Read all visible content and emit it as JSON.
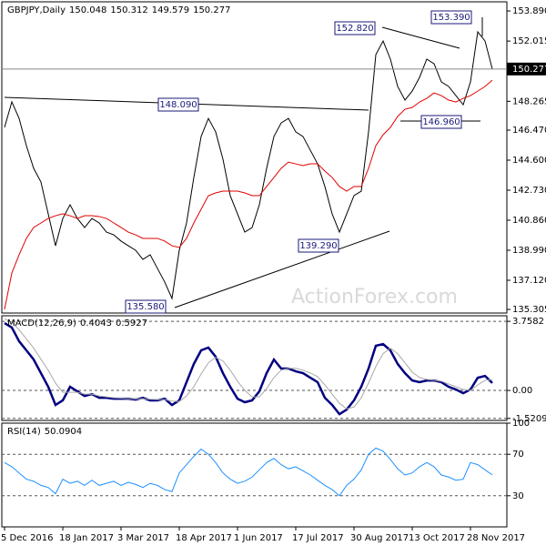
{
  "chart_data": [
    {
      "type": "line",
      "title": "GBPJPY,Daily",
      "open": 150.048,
      "high": 150.312,
      "low": 149.579,
      "close": 150.277,
      "watermark": "ActionForex.com",
      "categories": [
        "5 Dec 2016",
        null,
        null,
        null,
        null,
        null,
        null,
        null,
        "18 Jan 2017",
        null,
        null,
        null,
        null,
        null,
        null,
        null,
        "3 Mar 2017",
        null,
        null,
        null,
        null,
        null,
        null,
        null,
        "18 Apr 2017",
        null,
        null,
        null,
        null,
        null,
        null,
        null,
        "1 Jun 2017",
        null,
        null,
        null,
        null,
        null,
        null,
        null,
        "17 Jul 2017",
        null,
        null,
        null,
        null,
        null,
        null,
        null,
        "30 Aug 2017",
        null,
        null,
        null,
        null,
        null,
        null,
        null,
        "13 Oct 2017",
        null,
        null,
        null,
        null,
        null,
        null,
        null,
        "28 Nov 2017",
        null,
        null,
        null
      ],
      "series": [
        {
          "color": "#000000",
          "values": [
            146.64,
            148.23,
            147.2,
            145.5,
            144.09,
            143.24,
            141.25,
            139.27,
            140.97,
            141.82,
            140.97,
            140.4,
            140.97,
            140.69,
            140.12,
            139.95,
            139.56,
            139.27,
            138.99,
            138.42,
            138.71,
            137.86,
            137.01,
            135.99,
            138.99,
            140.69,
            143.52,
            146.07,
            147.2,
            146.36,
            144.66,
            142.39,
            141.25,
            140.12,
            140.4,
            141.82,
            144.09,
            146.07,
            146.92,
            147.2,
            146.36,
            146.07,
            145.22,
            144.37,
            142.96,
            141.25,
            140.12,
            141.25,
            142.39,
            142.67,
            146.36,
            151.17,
            152.02,
            150.89,
            149.19,
            148.34,
            148.9,
            149.75,
            150.89,
            150.6,
            149.47,
            149.19,
            148.62,
            148.05,
            149.47,
            152.59,
            152.02,
            150.277
          ]
        },
        {
          "color": "#e00000",
          "values": [
            135.31,
            137.57,
            138.71,
            139.73,
            140.41,
            140.69,
            140.97,
            141.14,
            141.26,
            141.14,
            140.97,
            141.14,
            141.14,
            141.09,
            140.97,
            140.69,
            140.41,
            140.12,
            139.95,
            139.73,
            139.73,
            139.73,
            139.56,
            139.27,
            139.16,
            139.73,
            140.69,
            141.54,
            142.39,
            142.56,
            142.67,
            142.67,
            142.67,
            142.56,
            142.39,
            142.39,
            142.96,
            143.52,
            144.09,
            144.48,
            144.37,
            144.26,
            144.37,
            144.37,
            143.92,
            143.52,
            142.96,
            142.67,
            142.96,
            142.96,
            144.09,
            145.5,
            146.18,
            146.64,
            147.32,
            147.77,
            147.88,
            148.22,
            148.45,
            148.79,
            148.62,
            148.34,
            148.22,
            148.45,
            148.62,
            148.9,
            149.19,
            149.58
          ]
        }
      ],
      "ylim": [
        135.08,
        154.46
      ],
      "yticks": [
        {
          "value": 153.89,
          "label": "153.890"
        },
        152.015,
        148.265,
        {
          "value": 146.47,
          "label": "146.470"
        },
        {
          "value": 144.6,
          "label": "144.600"
        },
        {
          "value": 142.73,
          "label": "142.730"
        },
        {
          "value": 140.86,
          "label": "140.860"
        },
        {
          "value": 138.99,
          "label": "138.990"
        },
        {
          "value": 137.12,
          "label": "137.120"
        },
        135.305
      ],
      "annotations": [
        "152.820",
        "153.390",
        "148.090",
        "146.960",
        "139.290",
        "135.580"
      ]
    },
    {
      "type": "line",
      "title": "MACD(12,26,9)",
      "macd": 0.4043,
      "signal": 0.5927,
      "series": [
        {
          "color": "#000080",
          "values": [
            3.66,
            3.42,
            2.67,
            2.18,
            1.68,
            0.94,
            0.2,
            -0.79,
            -0.54,
            0.2,
            -0.05,
            -0.3,
            -0.2,
            -0.4,
            -0.4,
            -0.45,
            -0.45,
            -0.45,
            -0.5,
            -0.4,
            -0.54,
            -0.54,
            -0.45,
            -0.79,
            -0.54,
            0.45,
            1.44,
            2.18,
            2.33,
            1.83,
            0.94,
            0.2,
            -0.45,
            -0.64,
            -0.54,
            -0.05,
            0.94,
            1.68,
            1.19,
            1.19,
            1.04,
            0.94,
            0.69,
            0.45,
            -0.4,
            -0.79,
            -1.29,
            -1.04,
            -0.54,
            0.2,
            1.19,
            2.43,
            2.52,
            2.18,
            1.44,
            0.94,
            0.54,
            0.45,
            0.54,
            0.54,
            0.45,
            0.2,
            0.05,
            -0.15,
            0.05,
            0.69,
            0.79,
            0.4043
          ]
        },
        {
          "color": "#a9a9a9",
          "values": [
            3.9,
            3.7,
            3.3,
            2.8,
            2.3,
            1.7,
            1.1,
            0.4,
            -0.1,
            -0.1,
            -0.1,
            -0.2,
            -0.2,
            -0.3,
            -0.35,
            -0.4,
            -0.42,
            -0.44,
            -0.46,
            -0.45,
            -0.48,
            -0.5,
            -0.5,
            -0.58,
            -0.6,
            -0.3,
            0.2,
            0.9,
            1.5,
            1.8,
            1.6,
            1.1,
            0.5,
            0.0,
            -0.35,
            -0.35,
            0.1,
            0.7,
            1.1,
            1.2,
            1.2,
            1.1,
            0.95,
            0.75,
            0.3,
            -0.2,
            -0.7,
            -1.0,
            -0.9,
            -0.4,
            0.4,
            1.3,
            2.0,
            2.3,
            2.0,
            1.5,
            1.0,
            0.7,
            0.6,
            0.55,
            0.5,
            0.35,
            0.2,
            0.05,
            0.0,
            0.3,
            0.55,
            0.5927
          ]
        }
      ],
      "ylim": [
        -1.63,
        4.06
      ],
      "yticks": [
        3.7582,
        {
          "value": 0,
          "label": "0.00"
        },
        -1.5209
      ]
    },
    {
      "type": "line",
      "title": "RSI(14)",
      "rsi": 50.0904,
      "series": [
        {
          "color": "#1e90ff",
          "values": [
            62,
            58,
            52,
            46,
            44,
            40,
            38,
            32,
            46,
            42,
            44,
            40,
            45,
            40,
            42,
            44,
            40,
            43,
            41,
            38,
            42,
            40,
            36,
            34,
            52,
            60,
            68,
            75,
            70,
            62,
            52,
            46,
            42,
            44,
            48,
            55,
            62,
            66,
            60,
            56,
            58,
            54,
            50,
            45,
            40,
            36,
            30,
            40,
            46,
            55,
            70,
            76,
            73,
            65,
            56,
            50,
            52,
            58,
            62,
            58,
            50,
            48,
            45,
            46,
            62,
            60,
            55,
            50.09
          ]
        }
      ],
      "ylim": [
        0,
        100
      ],
      "yticks": [
        100,
        70,
        30
      ]
    }
  ]
}
